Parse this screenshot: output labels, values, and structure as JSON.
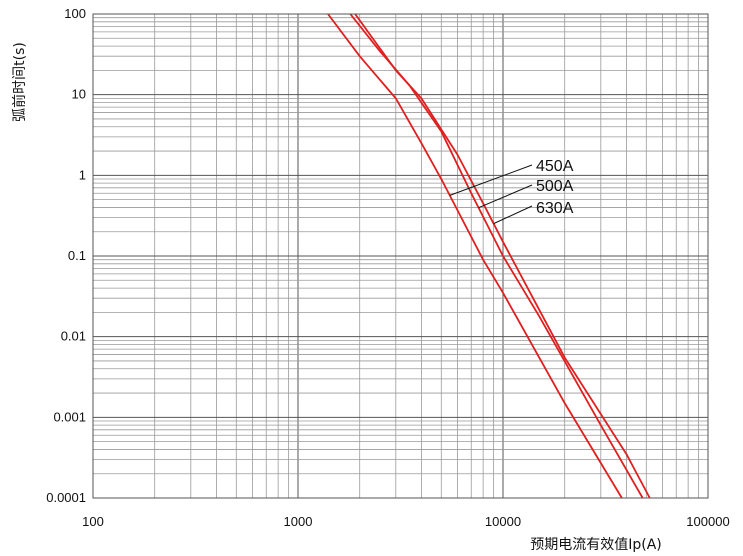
{
  "chart_data": {
    "type": "line",
    "title": "",
    "xlabel": "预期电流有效值Ip(A)",
    "ylabel": "弧前时间t(s)",
    "x_scale": "log",
    "y_scale": "log",
    "xlim": [
      100,
      100000
    ],
    "ylim": [
      0.0001,
      100
    ],
    "x_ticks": [
      "100",
      "1000",
      "10000",
      "100000"
    ],
    "y_ticks": [
      "0.0001",
      "0.001",
      "0.01",
      "0.1",
      "1",
      "10",
      "100"
    ],
    "grid": true,
    "line_color": "#e02020",
    "series": [
      {
        "name": "450A",
        "points": [
          [
            1400,
            100
          ],
          [
            2000,
            30
          ],
          [
            3000,
            9
          ],
          [
            4000,
            2.5
          ],
          [
            5000,
            0.9
          ],
          [
            8000,
            0.09
          ],
          [
            10000,
            0.035
          ],
          [
            20000,
            0.0015
          ],
          [
            38000,
            0.0001
          ]
        ]
      },
      {
        "name": "500A",
        "points": [
          [
            1800,
            100
          ],
          [
            2500,
            35
          ],
          [
            3500,
            13
          ],
          [
            5000,
            3.5
          ],
          [
            7000,
            0.6
          ],
          [
            10000,
            0.1
          ],
          [
            15000,
            0.018
          ],
          [
            30000,
            0.0008
          ],
          [
            48000,
            0.0001
          ]
        ]
      },
      {
        "name": "630A",
        "points": [
          [
            1900,
            100
          ],
          [
            3000,
            20
          ],
          [
            4000,
            9
          ],
          [
            6000,
            1.8
          ],
          [
            8000,
            0.45
          ],
          [
            10000,
            0.15
          ],
          [
            20000,
            0.0055
          ],
          [
            40000,
            0.00035
          ],
          [
            52000,
            0.0001
          ]
        ]
      }
    ]
  }
}
